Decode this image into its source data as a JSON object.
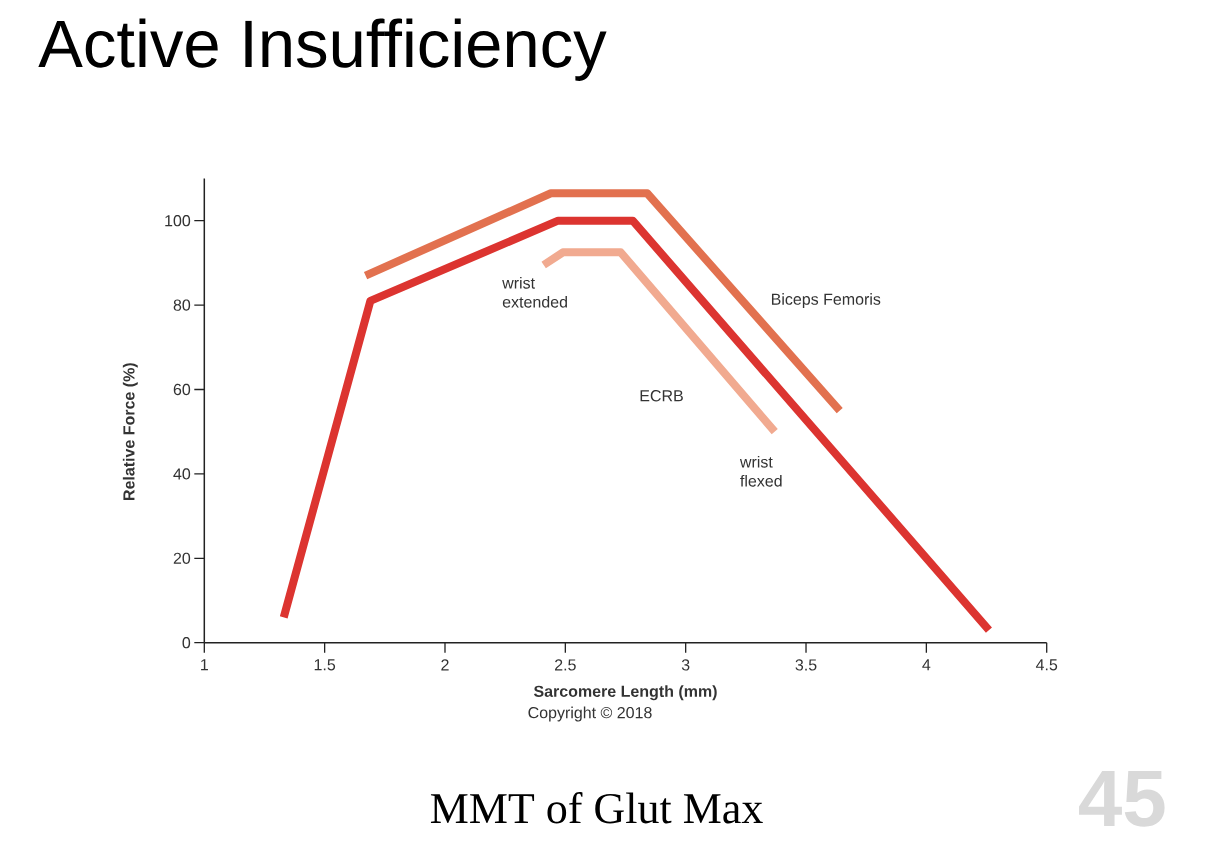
{
  "chart_data": {
    "type": "line",
    "title": "Active Insufficiency",
    "xlabel": "Sarcomere Length (mm)",
    "ylabel": "Relative Force (%)",
    "xlim": [
      1,
      4.5
    ],
    "xticks": [
      1,
      1.5,
      2,
      2.5,
      3,
      3.5,
      4,
      4.5
    ],
    "ylim": [
      0,
      110
    ],
    "yticks": [
      0,
      20,
      40,
      60,
      80,
      100
    ],
    "series": [
      {
        "color": "#dc3430",
        "x": [
          1.33,
          1.69,
          2.47,
          2.78,
          4.26
        ],
        "values": [
          6,
          81,
          100,
          100,
          3
        ]
      },
      {
        "name": "Biceps Femoris",
        "color": "#e2714f",
        "x": [
          1.67,
          2.44,
          2.84,
          3.64
        ],
        "values": [
          87,
          106.5,
          106.5,
          55
        ]
      },
      {
        "name": "ECRB",
        "color": "#f1aa90",
        "x": [
          2.41,
          2.49,
          2.73,
          3.37
        ],
        "values": [
          89.5,
          92.5,
          92.5,
          50
        ]
      }
    ],
    "annotations": [
      {
        "text": "wrist extended",
        "x": 2.41,
        "y": 89.5
      },
      {
        "text": "wrist flexed",
        "x": 3.37,
        "y": 50
      },
      "Copyright © 2018",
      "MMT of Glut Max",
      "45"
    ],
    "marker": "none",
    "line_style": "solid"
  }
}
